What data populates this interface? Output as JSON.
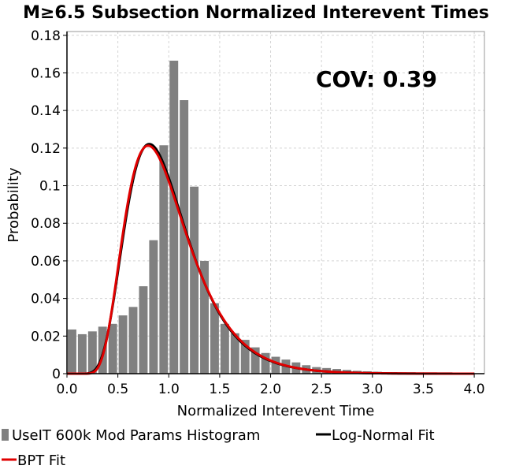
{
  "chart_data": {
    "type": "bar",
    "title": "M≥6.5 Subsection Normalized Interevent Times",
    "xlabel": "Normalized Interevent Time",
    "ylabel": "Probability",
    "xlim": [
      0,
      4.1
    ],
    "ylim": [
      0,
      0.182
    ],
    "xticks": [
      "0.0",
      "0.5",
      "1.0",
      "1.5",
      "2.0",
      "2.5",
      "3.0",
      "3.5",
      "4.0"
    ],
    "yticks": [
      "0",
      "0.02",
      "0.04",
      "0.06",
      "0.08",
      "0.1",
      "0.12",
      "0.14",
      "0.16",
      "0.18"
    ],
    "grid": true,
    "annotation": "COV: 0.39",
    "bin_width": 0.1,
    "x": [
      0.05,
      0.15,
      0.25,
      0.35,
      0.45,
      0.55,
      0.65,
      0.75,
      0.85,
      0.95,
      1.05,
      1.15,
      1.25,
      1.35,
      1.45,
      1.55,
      1.65,
      1.75,
      1.85,
      1.95,
      2.05,
      2.15,
      2.25,
      2.35,
      2.45,
      2.55,
      2.65,
      2.75,
      2.85,
      2.95,
      3.05,
      3.15,
      3.25,
      3.35,
      3.45,
      3.55,
      3.65,
      3.75,
      3.85,
      3.95
    ],
    "series": [
      {
        "name": "UseIT 600k Mod Params Histogram",
        "color": "#808080",
        "style": "bars",
        "values": [
          0.0235,
          0.021,
          0.0225,
          0.025,
          0.0265,
          0.031,
          0.0355,
          0.0465,
          0.071,
          0.1215,
          0.1665,
          0.1455,
          0.0995,
          0.06,
          0.0375,
          0.0265,
          0.0215,
          0.018,
          0.014,
          0.011,
          0.009,
          0.0075,
          0.006,
          0.0045,
          0.0035,
          0.003,
          0.0025,
          0.002,
          0.0015,
          0.0012,
          0.001,
          0.0008,
          0.0007,
          0.0006,
          0.0005,
          0.0004,
          0.0003,
          0.0003,
          0.0002,
          0.0002
        ]
      },
      {
        "name": "Log-Normal Fit",
        "color": "#000000",
        "style": "line",
        "mean": 1.0,
        "cov": 0.39
      },
      {
        "name": "BPT Fit",
        "color": "#e00000",
        "style": "line",
        "mean": 1.0,
        "cov": 0.39
      }
    ]
  }
}
